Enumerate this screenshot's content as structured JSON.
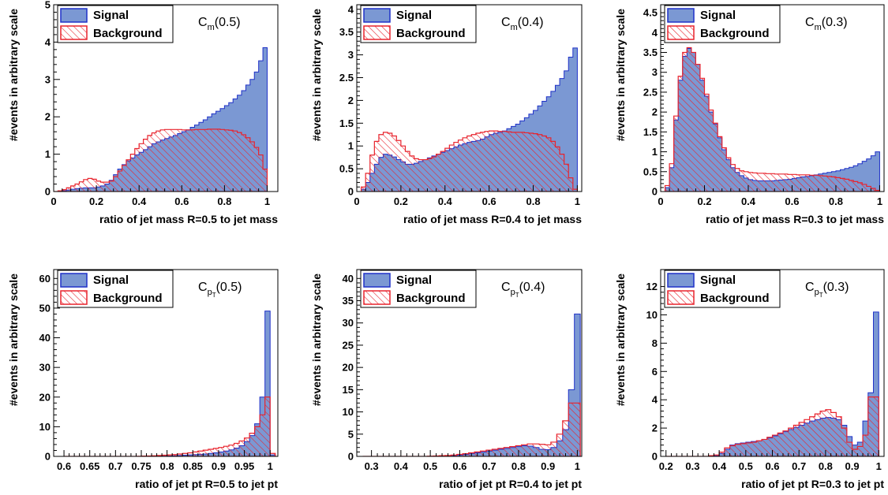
{
  "legend": {
    "signal": "Signal",
    "background": "Background"
  },
  "colors": {
    "signal_fill": "#7b98d3",
    "signal_line": "#1f31c8",
    "background": "#e8232d",
    "axis": "#000000"
  },
  "chart_data": [
    {
      "type": "histogram",
      "id": "cm05",
      "xlabel": "ratio of jet mass R=0.5 to jet mass",
      "ylabel": "#events in arbitrary scale",
      "annot_main": "C",
      "annot_sub": "m",
      "annot_arg": "(0.5)",
      "xlim": [
        0,
        1.05
      ],
      "ylim": [
        0,
        5
      ],
      "xticks": [
        0,
        0.2,
        0.4,
        0.6,
        0.8,
        1
      ],
      "xtick_labels": [
        "0",
        "0.2",
        "0.4",
        "0.6",
        "0.8",
        "1"
      ],
      "yticks": [
        0,
        1,
        2,
        3,
        4,
        5
      ],
      "ytick_labels": [
        "0",
        "1",
        "2",
        "3",
        "4",
        "5"
      ],
      "bin_edges_range": [
        0.0,
        1.0
      ],
      "nbins": 50,
      "legend_position": "top-left",
      "series": [
        {
          "name": "Signal",
          "values": [
            0.0,
            0.0,
            0.02,
            0.04,
            0.06,
            0.08,
            0.09,
            0.1,
            0.1,
            0.1,
            0.12,
            0.15,
            0.2,
            0.3,
            0.45,
            0.6,
            0.72,
            0.82,
            0.9,
            0.98,
            1.05,
            1.12,
            1.2,
            1.28,
            1.33,
            1.38,
            1.42,
            1.46,
            1.5,
            1.55,
            1.6,
            1.65,
            1.72,
            1.78,
            1.85,
            1.92,
            2.0,
            2.08,
            2.15,
            2.22,
            2.3,
            2.38,
            2.48,
            2.58,
            2.7,
            2.85,
            3.0,
            3.2,
            3.5,
            3.85
          ]
        },
        {
          "name": "Background",
          "values": [
            0.0,
            0.02,
            0.05,
            0.1,
            0.15,
            0.2,
            0.26,
            0.32,
            0.35,
            0.33,
            0.28,
            0.25,
            0.25,
            0.28,
            0.4,
            0.55,
            0.7,
            0.85,
            1.0,
            1.15,
            1.28,
            1.4,
            1.5,
            1.57,
            1.62,
            1.65,
            1.66,
            1.66,
            1.66,
            1.66,
            1.65,
            1.65,
            1.65,
            1.66,
            1.66,
            1.66,
            1.67,
            1.67,
            1.67,
            1.66,
            1.65,
            1.64,
            1.62,
            1.58,
            1.52,
            1.44,
            1.33,
            1.18,
            0.98,
            0.6
          ]
        }
      ]
    },
    {
      "type": "histogram",
      "id": "cm04",
      "xlabel": "ratio of jet mass R=0.4 to jet mass",
      "ylabel": "#events in arbitrary scale",
      "annot_main": "C",
      "annot_sub": "m",
      "annot_arg": "(0.4)",
      "xlim": [
        0,
        1.02
      ],
      "ylim": [
        0,
        4.1
      ],
      "xticks": [
        0,
        0.2,
        0.4,
        0.6,
        0.8,
        1
      ],
      "xtick_labels": [
        "0",
        "0.2",
        "0.4",
        "0.6",
        "0.8",
        "1"
      ],
      "yticks": [
        0,
        0.5,
        1,
        1.5,
        2,
        2.5,
        3,
        3.5,
        4
      ],
      "ytick_labels": [
        "0",
        "0.5",
        "1",
        "1.5",
        "2",
        "2.5",
        "3",
        "3.5",
        "4"
      ],
      "bin_edges_range": [
        0.02,
        1.0
      ],
      "nbins": 49,
      "legend_position": "top-left",
      "series": [
        {
          "name": "Signal",
          "values": [
            0.05,
            0.2,
            0.4,
            0.6,
            0.75,
            0.82,
            0.8,
            0.76,
            0.7,
            0.65,
            0.6,
            0.6,
            0.62,
            0.66,
            0.7,
            0.74,
            0.78,
            0.82,
            0.86,
            0.9,
            0.94,
            0.98,
            1.02,
            1.05,
            1.08,
            1.1,
            1.12,
            1.15,
            1.2,
            1.25,
            1.28,
            1.3,
            1.33,
            1.38,
            1.43,
            1.48,
            1.55,
            1.62,
            1.7,
            1.78,
            1.88,
            1.98,
            2.08,
            2.2,
            2.33,
            2.48,
            2.65,
            2.95,
            3.15
          ]
        },
        {
          "name": "Background",
          "values": [
            0.1,
            0.4,
            0.8,
            1.1,
            1.25,
            1.3,
            1.28,
            1.22,
            1.12,
            1.0,
            0.88,
            0.78,
            0.72,
            0.7,
            0.7,
            0.72,
            0.76,
            0.82,
            0.88,
            0.95,
            1.02,
            1.08,
            1.13,
            1.18,
            1.22,
            1.25,
            1.28,
            1.3,
            1.32,
            1.33,
            1.33,
            1.32,
            1.32,
            1.31,
            1.3,
            1.3,
            1.3,
            1.29,
            1.28,
            1.27,
            1.25,
            1.22,
            1.18,
            1.1,
            0.98,
            0.82,
            0.6,
            0.3,
            0.05
          ]
        }
      ]
    },
    {
      "type": "histogram",
      "id": "cm03",
      "xlabel": "ratio of jet mass R=0.3 to jet mass",
      "ylabel": "#events in arbitrary scale",
      "annot_main": "C",
      "annot_sub": "m",
      "annot_arg": "(0.3)",
      "xlim": [
        0,
        1.02
      ],
      "ylim": [
        0,
        4.7
      ],
      "xticks": [
        0,
        0.2,
        0.4,
        0.6,
        0.8,
        1
      ],
      "xtick_labels": [
        "0",
        "0.2",
        "0.4",
        "0.6",
        "0.8",
        "1"
      ],
      "yticks": [
        0,
        0.5,
        1,
        1.5,
        2,
        2.5,
        3,
        3.5,
        4,
        4.5
      ],
      "ytick_labels": [
        "0",
        "0.5",
        "1",
        "1.5",
        "2",
        "2.5",
        "3",
        "3.5",
        "4",
        "4.5"
      ],
      "bin_edges_range": [
        0.02,
        1.0
      ],
      "nbins": 49,
      "legend_position": "top-left",
      "series": [
        {
          "name": "Signal",
          "values": [
            0.1,
            0.6,
            1.8,
            2.8,
            3.4,
            3.6,
            3.5,
            3.2,
            2.8,
            2.4,
            2.0,
            1.7,
            1.35,
            1.05,
            0.8,
            0.6,
            0.48,
            0.4,
            0.34,
            0.3,
            0.28,
            0.27,
            0.27,
            0.27,
            0.27,
            0.28,
            0.29,
            0.3,
            0.31,
            0.33,
            0.35,
            0.37,
            0.38,
            0.4,
            0.42,
            0.44,
            0.46,
            0.48,
            0.5,
            0.52,
            0.55,
            0.58,
            0.61,
            0.65,
            0.7,
            0.76,
            0.82,
            0.9,
            1.0
          ]
        },
        {
          "name": "Background",
          "values": [
            0.15,
            0.7,
            1.9,
            2.9,
            3.5,
            3.62,
            3.5,
            3.2,
            2.85,
            2.45,
            2.05,
            1.72,
            1.38,
            1.1,
            0.85,
            0.68,
            0.58,
            0.52,
            0.5,
            0.48,
            0.47,
            0.46,
            0.46,
            0.45,
            0.45,
            0.44,
            0.44,
            0.44,
            0.43,
            0.43,
            0.42,
            0.42,
            0.42,
            0.41,
            0.41,
            0.4,
            0.39,
            0.38,
            0.37,
            0.35,
            0.33,
            0.31,
            0.28,
            0.25,
            0.22,
            0.18,
            0.13,
            0.08,
            0.03
          ]
        }
      ]
    },
    {
      "type": "histogram",
      "id": "cpt05",
      "xlabel": "ratio of jet pt R=0.5 to jet pt",
      "ylabel": "#events in arbitrary scale",
      "annot_main": "C",
      "annot_sub": "p",
      "annot_subsub": "T",
      "annot_arg": "(0.5)",
      "xlim": [
        0.58,
        1.015
      ],
      "ylim": [
        0,
        63
      ],
      "xticks": [
        0.6,
        0.65,
        0.7,
        0.75,
        0.8,
        0.85,
        0.9,
        0.95,
        1
      ],
      "xtick_labels": [
        "0.6",
        "0.65",
        "0.7",
        "0.75",
        "0.8",
        "0.85",
        "0.9",
        "0.95",
        "1"
      ],
      "yticks": [
        0,
        10,
        20,
        30,
        40,
        50,
        60
      ],
      "ytick_labels": [
        "0",
        "10",
        "20",
        "30",
        "40",
        "50",
        "60"
      ],
      "bin_edges_range": [
        0.6,
        1.01
      ],
      "nbins": 41,
      "legend_position": "top-left",
      "series": [
        {
          "name": "Signal",
          "values": [
            0,
            0,
            0,
            0,
            0,
            0,
            0,
            0,
            0,
            0,
            0,
            0,
            0,
            0,
            0,
            0,
            0,
            0.05,
            0.08,
            0.1,
            0.15,
            0.2,
            0.3,
            0.4,
            0.5,
            0.6,
            0.7,
            0.8,
            1.0,
            1.2,
            1.5,
            1.8,
            2.2,
            2.8,
            3.6,
            5.0,
            7.0,
            11.0,
            20.0,
            49.0,
            0.5
          ]
        },
        {
          "name": "Background",
          "values": [
            0,
            0,
            0,
            0,
            0,
            0,
            0,
            0,
            0,
            0,
            0,
            0,
            0,
            0,
            0.05,
            0.1,
            0.15,
            0.2,
            0.3,
            0.4,
            0.5,
            0.6,
            0.8,
            1.0,
            1.2,
            1.5,
            1.8,
            2.1,
            2.4,
            2.7,
            3.0,
            3.4,
            3.8,
            4.4,
            5.2,
            6.2,
            7.8,
            10.0,
            14.0,
            20.0,
            1.0
          ]
        }
      ]
    },
    {
      "type": "histogram",
      "id": "cpt04",
      "xlabel": "ratio of jet pt R=0.4 to jet pt",
      "ylabel": "#events in arbitrary scale",
      "annot_main": "C",
      "annot_sub": "p",
      "annot_subsub": "T",
      "annot_arg": "(0.4)",
      "xlim": [
        0.25,
        1.015
      ],
      "ylim": [
        0,
        42
      ],
      "xticks": [
        0.3,
        0.4,
        0.5,
        0.6,
        0.7,
        0.8,
        0.9,
        1
      ],
      "xtick_labels": [
        "0.3",
        "0.4",
        "0.5",
        "0.6",
        "0.7",
        "0.8",
        "0.9",
        "1"
      ],
      "yticks": [
        0,
        5,
        10,
        15,
        20,
        25,
        30,
        35,
        40
      ],
      "ytick_labels": [
        "0",
        "5",
        "10",
        "15",
        "20",
        "25",
        "30",
        "35",
        "40"
      ],
      "bin_edges_range": [
        0.27,
        1.01
      ],
      "nbins": 37,
      "legend_position": "top-left",
      "series": [
        {
          "name": "Signal",
          "values": [
            0,
            0,
            0,
            0,
            0,
            0,
            0,
            0,
            0,
            0,
            0,
            0,
            0.05,
            0.1,
            0.15,
            0.2,
            0.3,
            0.45,
            0.6,
            0.8,
            1.0,
            1.2,
            1.4,
            1.6,
            1.8,
            2.0,
            2.2,
            2.4,
            2.3,
            2.0,
            1.6,
            1.5,
            2.0,
            3.5,
            6.0,
            15.0,
            32.0
          ]
        },
        {
          "name": "Background",
          "values": [
            0,
            0,
            0,
            0,
            0,
            0,
            0,
            0,
            0,
            0,
            0,
            0.05,
            0.1,
            0.15,
            0.2,
            0.3,
            0.45,
            0.6,
            0.8,
            1.0,
            1.2,
            1.4,
            1.6,
            1.8,
            2.0,
            2.2,
            2.4,
            2.6,
            2.8,
            2.8,
            2.7,
            2.6,
            3.2,
            5.0,
            8.0,
            12.0,
            12.0
          ]
        }
      ]
    },
    {
      "type": "histogram",
      "id": "cpt03",
      "xlabel": "ratio of jet pt R=0.3 to jet pt",
      "ylabel": "#events in arbitrary scale",
      "annot_main": "C",
      "annot_sub": "p",
      "annot_subsub": "T",
      "annot_arg": "(0.3)",
      "xlim": [
        0.18,
        1.02
      ],
      "ylim": [
        0,
        13.2
      ],
      "xticks": [
        0.2,
        0.3,
        0.4,
        0.5,
        0.6,
        0.7,
        0.8,
        0.9,
        1
      ],
      "xtick_labels": [
        "0.2",
        "0.3",
        "0.4",
        "0.5",
        "0.6",
        "0.7",
        "0.8",
        "0.9",
        "1"
      ],
      "yticks": [
        0,
        2,
        4,
        6,
        8,
        10,
        12
      ],
      "ytick_labels": [
        "0",
        "2",
        "4",
        "6",
        "8",
        "10",
        "12"
      ],
      "bin_edges_range": [
        0.2,
        1.0
      ],
      "nbins": 40,
      "legend_position": "top-left",
      "series": [
        {
          "name": "Signal",
          "values": [
            0,
            0,
            0,
            0,
            0,
            0,
            0,
            0,
            0,
            0.05,
            0.2,
            0.5,
            0.8,
            0.9,
            0.95,
            1.0,
            1.05,
            1.1,
            1.2,
            1.3,
            1.45,
            1.6,
            1.75,
            1.9,
            2.05,
            2.2,
            2.35,
            2.5,
            2.6,
            2.7,
            2.75,
            2.7,
            2.6,
            2.2,
            1.4,
            0.8,
            1.0,
            2.5,
            4.5,
            10.2
          ]
        },
        {
          "name": "Background",
          "values": [
            0,
            0,
            0,
            0,
            0,
            0,
            0,
            0,
            0.05,
            0.1,
            0.3,
            0.6,
            0.75,
            0.85,
            0.9,
            0.95,
            1.0,
            1.1,
            1.2,
            1.35,
            1.5,
            1.65,
            1.8,
            2.0,
            2.2,
            2.4,
            2.6,
            2.8,
            3.0,
            3.2,
            3.3,
            3.1,
            2.8,
            2.0,
            1.0,
            0.5,
            0.7,
            1.5,
            4.2,
            4.2
          ]
        }
      ]
    }
  ]
}
